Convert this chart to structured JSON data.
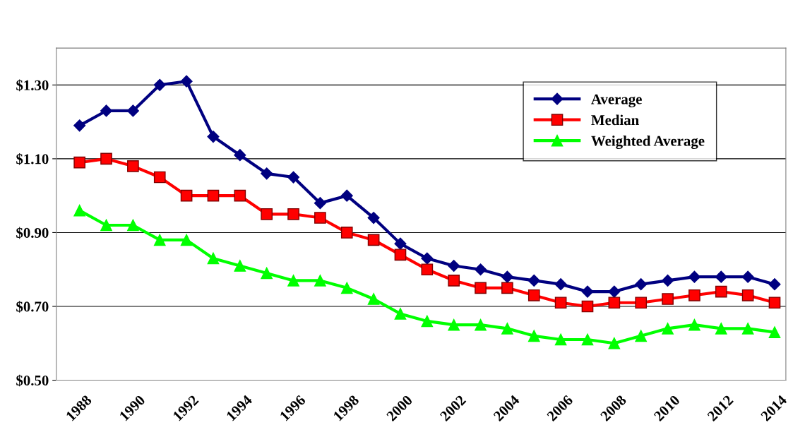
{
  "chart_data": {
    "type": "line",
    "x": [
      1988,
      1989,
      1990,
      1991,
      1992,
      1993,
      1994,
      1995,
      1996,
      1997,
      1998,
      1999,
      2000,
      2001,
      2002,
      2003,
      2004,
      2005,
      2006,
      2007,
      2008,
      2009,
      2010,
      2011,
      2012,
      2013,
      2014
    ],
    "series": [
      {
        "name": "Average",
        "color": "#000080",
        "marker": "diamond",
        "values": [
          1.19,
          1.23,
          1.23,
          1.3,
          1.31,
          1.16,
          1.11,
          1.06,
          1.05,
          0.98,
          1.0,
          0.94,
          0.87,
          0.83,
          0.81,
          0.8,
          0.78,
          0.77,
          0.76,
          0.74,
          0.74,
          0.76,
          0.77,
          0.78,
          0.78,
          0.78,
          0.76
        ]
      },
      {
        "name": "Median",
        "color": "#ff0000",
        "marker": "square",
        "values": [
          1.09,
          1.1,
          1.08,
          1.05,
          1.0,
          1.0,
          1.0,
          0.95,
          0.95,
          0.94,
          0.9,
          0.88,
          0.84,
          0.8,
          0.77,
          0.75,
          0.75,
          0.73,
          0.71,
          0.7,
          0.71,
          0.71,
          0.72,
          0.73,
          0.74,
          0.73,
          0.71
        ]
      },
      {
        "name": "Weighted Average",
        "color": "#00ff00",
        "marker": "triangle",
        "values": [
          0.96,
          0.92,
          0.92,
          0.88,
          0.88,
          0.83,
          0.81,
          0.79,
          0.77,
          0.77,
          0.75,
          0.72,
          0.68,
          0.66,
          0.65,
          0.65,
          0.64,
          0.62,
          0.61,
          0.61,
          0.6,
          0.62,
          0.64,
          0.65,
          0.64,
          0.64,
          0.63
        ]
      }
    ],
    "xlim": [
      1987.13,
      2014.42
    ],
    "xticks": [
      1988,
      1990,
      1992,
      1994,
      1996,
      1998,
      2000,
      2002,
      2004,
      2006,
      2008,
      2010,
      2012,
      2014
    ],
    "ylim": [
      0.5,
      1.4
    ],
    "yticks": [
      {
        "value": 0.5,
        "label": "$0.50"
      },
      {
        "value": 0.7,
        "label": "$0.70"
      },
      {
        "value": 0.9,
        "label": "$0.90"
      },
      {
        "value": 1.1,
        "label": "$1.10"
      },
      {
        "value": 1.3,
        "label": "$1.30"
      }
    ],
    "grid": "y",
    "legend": "top right",
    "line_style": "solid"
  }
}
